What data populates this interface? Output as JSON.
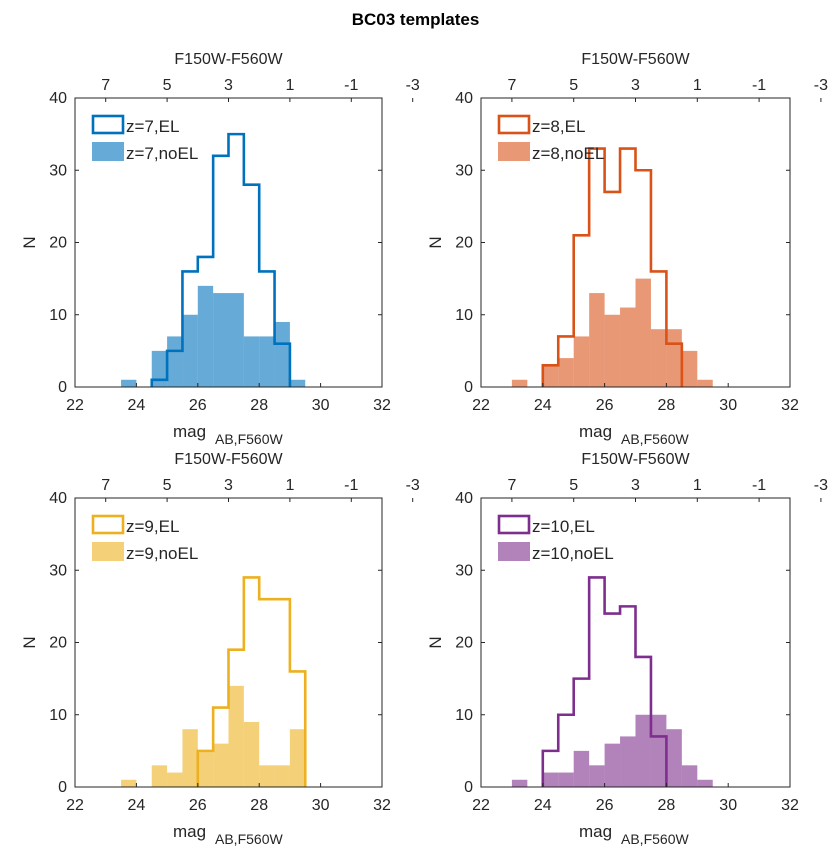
{
  "figure_title": "BC03 templates",
  "chart_data": [
    {
      "type": "histogram",
      "title": "",
      "top_axis_label": "F150W-F560W",
      "top_ticks": [
        "7",
        "5",
        "3",
        "1",
        "-1",
        "-3"
      ],
      "top_tick_values": [
        7,
        5,
        3,
        1,
        -1,
        -3
      ],
      "xlabel_main": "mag",
      "xlabel_sub": "AB,F560W",
      "ylabel": "N",
      "xlim": [
        22,
        32
      ],
      "ylim": [
        0,
        40
      ],
      "xticks": [
        22,
        24,
        26,
        28,
        30,
        32
      ],
      "yticks": [
        0,
        10,
        20,
        30,
        40
      ],
      "legend_position": "top-left",
      "bin_width": 0.5,
      "color": "#0072BD",
      "series": [
        {
          "name": "z=7,EL",
          "style": "outline",
          "bins": [
            24.5,
            25.0,
            25.5,
            26.0,
            26.5,
            27.0,
            27.5,
            28.0,
            28.5
          ],
          "counts": [
            1,
            5,
            16,
            18,
            32,
            35,
            28,
            16,
            6
          ]
        },
        {
          "name": "z=7,noEL",
          "style": "filled",
          "bins": [
            23.5,
            24.0,
            24.5,
            25.0,
            25.5,
            26.0,
            26.5,
            27.0,
            27.5,
            28.0,
            28.5,
            29.0
          ],
          "counts": [
            1,
            0,
            5,
            7,
            10,
            14,
            13,
            13,
            7,
            7,
            9,
            1
          ]
        }
      ]
    },
    {
      "type": "histogram",
      "title": "",
      "top_axis_label": "F150W-F560W",
      "top_ticks": [
        "7",
        "5",
        "3",
        "1",
        "-1",
        "-3"
      ],
      "top_tick_values": [
        7,
        5,
        3,
        1,
        -1,
        -3
      ],
      "xlabel_main": "mag",
      "xlabel_sub": "AB,F560W",
      "ylabel": "N",
      "xlim": [
        22,
        32
      ],
      "ylim": [
        0,
        40
      ],
      "xticks": [
        22,
        24,
        26,
        28,
        30,
        32
      ],
      "yticks": [
        0,
        10,
        20,
        30,
        40
      ],
      "legend_position": "top-left",
      "bin_width": 0.5,
      "color": "#D95319",
      "series": [
        {
          "name": "z=8,EL",
          "style": "outline",
          "bins": [
            24.0,
            24.5,
            25.0,
            25.5,
            26.0,
            26.5,
            27.0,
            27.5,
            28.0
          ],
          "counts": [
            3,
            7,
            21,
            33,
            27,
            33,
            30,
            16,
            6
          ]
        },
        {
          "name": "z=8,noEL",
          "style": "filled",
          "bins": [
            23.0,
            23.5,
            24.0,
            24.5,
            25.0,
            25.5,
            26.0,
            26.5,
            27.0,
            27.5,
            28.0,
            28.5,
            29.0
          ],
          "counts": [
            1,
            0,
            3,
            4,
            7,
            13,
            10,
            11,
            15,
            8,
            8,
            5,
            1
          ]
        }
      ]
    },
    {
      "type": "histogram",
      "title": "",
      "top_axis_label": "F150W-F560W",
      "top_ticks": [
        "7",
        "5",
        "3",
        "1",
        "-1",
        "-3"
      ],
      "top_tick_values": [
        7,
        5,
        3,
        1,
        -1,
        -3
      ],
      "xlabel_main": "mag",
      "xlabel_sub": "AB,F560W",
      "ylabel": "N",
      "xlim": [
        22,
        32
      ],
      "ylim": [
        0,
        40
      ],
      "xticks": [
        22,
        24,
        26,
        28,
        30,
        32
      ],
      "yticks": [
        0,
        10,
        20,
        30,
        40
      ],
      "legend_position": "top-left",
      "bin_width": 0.5,
      "color": "#EDB120",
      "series": [
        {
          "name": "z=9,EL",
          "style": "outline",
          "bins": [
            26.0,
            26.5,
            27.0,
            27.5,
            28.0,
            28.5,
            29.0
          ],
          "counts": [
            5,
            11,
            19,
            29,
            26,
            26,
            16
          ]
        },
        {
          "name": "z=9,noEL",
          "style": "filled",
          "bins": [
            23.5,
            24.0,
            24.5,
            25.0,
            25.5,
            26.0,
            26.5,
            27.0,
            27.5,
            28.0,
            28.5,
            29.0
          ],
          "counts": [
            1,
            0,
            3,
            2,
            8,
            5,
            6,
            14,
            9,
            3,
            3,
            8
          ]
        }
      ]
    },
    {
      "type": "histogram",
      "title": "",
      "top_axis_label": "F150W-F560W",
      "top_ticks": [
        "7",
        "5",
        "3",
        "1",
        "-1",
        "-3"
      ],
      "top_tick_values": [
        7,
        5,
        3,
        1,
        -1,
        -3
      ],
      "xlabel_main": "mag",
      "xlabel_sub": "AB,F560W",
      "ylabel": "N",
      "xlim": [
        22,
        32
      ],
      "ylim": [
        0,
        40
      ],
      "xticks": [
        22,
        24,
        26,
        28,
        30,
        32
      ],
      "yticks": [
        0,
        10,
        20,
        30,
        40
      ],
      "legend_position": "top-left",
      "bin_width": 0.5,
      "color": "#7E2F8E",
      "series": [
        {
          "name": "z=10,EL",
          "style": "outline",
          "bins": [
            24.0,
            24.5,
            25.0,
            25.5,
            26.0,
            26.5,
            27.0,
            27.5
          ],
          "counts": [
            5,
            10,
            15,
            29,
            24,
            25,
            18,
            7
          ]
        },
        {
          "name": "z=10,noEL",
          "style": "filled",
          "bins": [
            23.0,
            23.5,
            24.0,
            24.5,
            25.0,
            25.5,
            26.0,
            26.5,
            27.0,
            27.5,
            28.0,
            28.5,
            29.0
          ],
          "counts": [
            1,
            0,
            2,
            2,
            5,
            3,
            6,
            7,
            10,
            10,
            8,
            3,
            1
          ]
        }
      ]
    }
  ]
}
